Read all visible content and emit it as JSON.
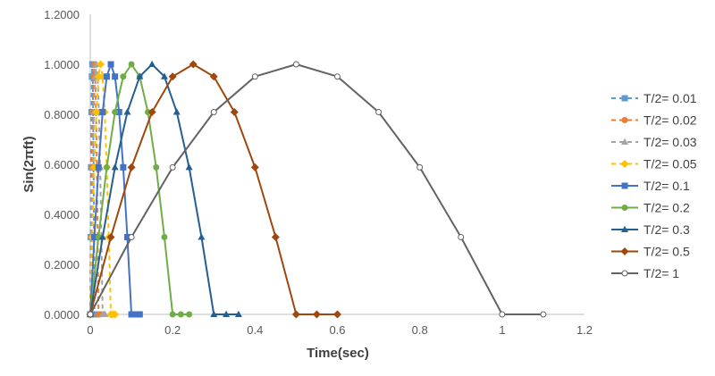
{
  "chart_data": {
    "type": "line",
    "xlabel": "Time(sec)",
    "ylabel": "Sin(2πft)",
    "xlim": [
      0,
      1.2
    ],
    "ylim": [
      0,
      1.2
    ],
    "x_ticks": [
      "0",
      "0.2",
      "0.4",
      "0.6",
      "0.8",
      "1",
      "1.2"
    ],
    "y_ticks": [
      "0.0000",
      "0.2000",
      "0.4000",
      "0.6000",
      "0.8000",
      "1.0000",
      "1.2000"
    ],
    "grid": "none",
    "legend_position": "right",
    "series": [
      {
        "name": "T/2= 0.01",
        "color": "#5B9BD5",
        "marker": "square",
        "dashed": true,
        "x": [
          0,
          0.001,
          0.002,
          0.003,
          0.004,
          0.005,
          0.006,
          0.007,
          0.008,
          0.009,
          0.01,
          0.011,
          0.012
        ],
        "y": [
          0,
          0.309,
          0.588,
          0.809,
          0.951,
          1.0,
          0.951,
          0.809,
          0.588,
          0.309,
          0,
          0,
          0
        ]
      },
      {
        "name": "T/2= 0.02",
        "color": "#ED7D31",
        "marker": "circle",
        "dashed": true,
        "x": [
          0,
          0.002,
          0.004,
          0.006,
          0.008,
          0.01,
          0.012,
          0.014,
          0.016,
          0.018,
          0.02,
          0.022,
          0.024
        ],
        "y": [
          0,
          0.309,
          0.588,
          0.809,
          0.951,
          1.0,
          0.951,
          0.809,
          0.588,
          0.309,
          0,
          0,
          0
        ]
      },
      {
        "name": "T/2= 0.03",
        "color": "#A5A5A5",
        "marker": "triangle",
        "dashed": true,
        "x": [
          0,
          0.003,
          0.006,
          0.009,
          0.012,
          0.015,
          0.018,
          0.021,
          0.024,
          0.027,
          0.03,
          0.033,
          0.036
        ],
        "y": [
          0,
          0.309,
          0.588,
          0.809,
          0.951,
          1.0,
          0.951,
          0.809,
          0.588,
          0.309,
          0,
          0,
          0
        ]
      },
      {
        "name": "T/2= 0.05",
        "color": "#FFC000",
        "marker": "diamond",
        "dashed": true,
        "x": [
          0,
          0.005,
          0.01,
          0.015,
          0.02,
          0.025,
          0.03,
          0.035,
          0.04,
          0.045,
          0.05,
          0.055,
          0.06
        ],
        "y": [
          0,
          0.309,
          0.588,
          0.809,
          0.951,
          1.0,
          0.951,
          0.809,
          0.588,
          0.309,
          0,
          0,
          0
        ]
      },
      {
        "name": "T/2= 0.1",
        "color": "#4472C4",
        "marker": "square",
        "dashed": false,
        "x": [
          0,
          0.01,
          0.02,
          0.03,
          0.04,
          0.05,
          0.06,
          0.07,
          0.08,
          0.09,
          0.1,
          0.11,
          0.12
        ],
        "y": [
          0,
          0.309,
          0.588,
          0.809,
          0.951,
          1.0,
          0.951,
          0.809,
          0.588,
          0.309,
          0,
          0,
          0
        ]
      },
      {
        "name": "T/2= 0.2",
        "color": "#70AD47",
        "marker": "circle",
        "dashed": false,
        "x": [
          0,
          0.02,
          0.04,
          0.06,
          0.08,
          0.1,
          0.12,
          0.14,
          0.16,
          0.18,
          0.2,
          0.22,
          0.24
        ],
        "y": [
          0,
          0.309,
          0.588,
          0.809,
          0.951,
          1.0,
          0.951,
          0.809,
          0.588,
          0.309,
          0,
          0,
          0
        ]
      },
      {
        "name": "T/2= 0.3",
        "color": "#255E91",
        "marker": "triangle",
        "dashed": false,
        "x": [
          0,
          0.03,
          0.06,
          0.09,
          0.12,
          0.15,
          0.18,
          0.21,
          0.24,
          0.27,
          0.3,
          0.33,
          0.36
        ],
        "y": [
          0,
          0.309,
          0.588,
          0.809,
          0.951,
          1.0,
          0.951,
          0.809,
          0.588,
          0.309,
          0,
          0,
          0
        ]
      },
      {
        "name": "T/2= 0.5",
        "color": "#9E480E",
        "marker": "diamond",
        "dashed": false,
        "x": [
          0,
          0.05,
          0.1,
          0.15,
          0.2,
          0.25,
          0.3,
          0.35,
          0.4,
          0.45,
          0.5,
          0.55,
          0.6
        ],
        "y": [
          0,
          0.309,
          0.588,
          0.809,
          0.951,
          1.0,
          0.951,
          0.809,
          0.588,
          0.309,
          0,
          0,
          0
        ]
      },
      {
        "name": "T/2= 1",
        "color": "#636363",
        "marker": "open-circle",
        "dashed": false,
        "x": [
          0,
          0.1,
          0.2,
          0.3,
          0.4,
          0.5,
          0.6,
          0.7,
          0.8,
          0.9,
          1.0,
          1.1
        ],
        "y": [
          0,
          0.309,
          0.588,
          0.809,
          0.951,
          1.0,
          0.951,
          0.809,
          0.588,
          0.309,
          0,
          0
        ]
      }
    ]
  }
}
